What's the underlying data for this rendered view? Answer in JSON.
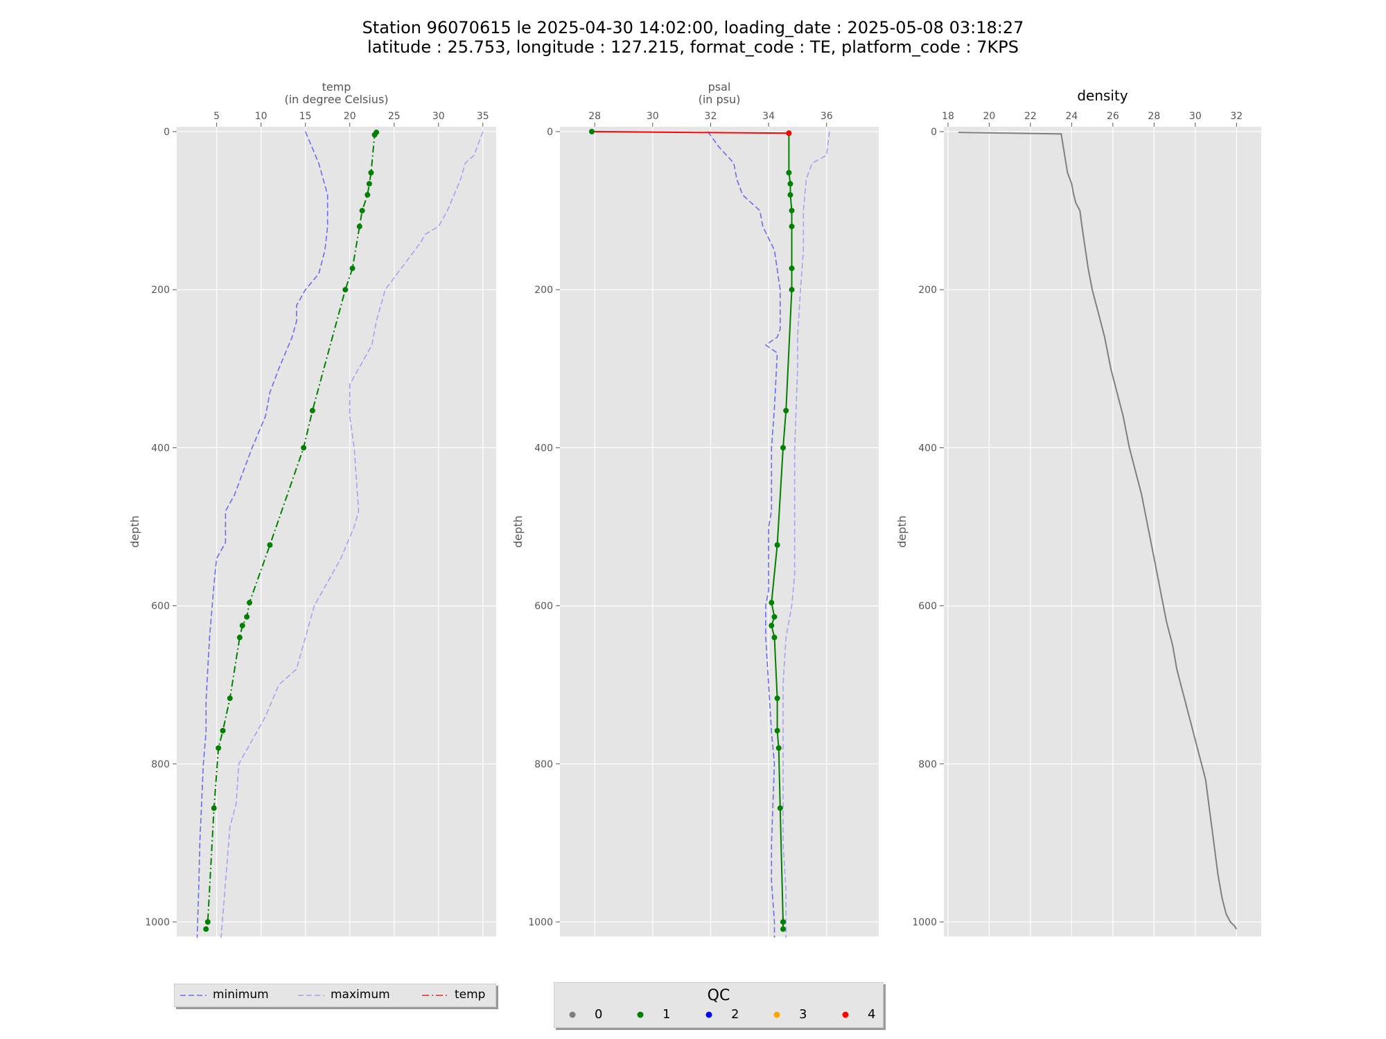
{
  "title": {
    "line1": "Station 96070615 le 2025-04-30 14:02:00, loading_date : 2025-05-08 03:18:27",
    "line2": "latitude : 25.753, longitude : 127.215, format_code : TE, platform_code : 7KPS"
  },
  "colors": {
    "minimum": "#6b6bf0",
    "maximum": "#a3a3f0",
    "temp_legend": "#e22c2c",
    "qc": {
      "0": "#7f7f7f",
      "1": "#007f00",
      "2": "#0000ff",
      "3": "#ffa500",
      "4": "#ff0000"
    },
    "density": "#7f7f7f"
  },
  "legend_left": {
    "items": [
      {
        "label": "minimum",
        "style": "dashed",
        "color": "#6b6bf0"
      },
      {
        "label": "maximum",
        "style": "dashed",
        "color": "#a3a3f0"
      },
      {
        "label": "temp",
        "style": "dashdot",
        "color": "#e22c2c"
      }
    ]
  },
  "legend_qc": {
    "title": "QC",
    "items": [
      {
        "label": "0",
        "color": "#7f7f7f"
      },
      {
        "label": "1",
        "color": "#007f00"
      },
      {
        "label": "2",
        "color": "#0000ff"
      },
      {
        "label": "3",
        "color": "#ffa500"
      },
      {
        "label": "4",
        "color": "#ff0000"
      }
    ]
  },
  "chart_data": [
    {
      "type": "line",
      "id": "temp",
      "title": "temp\n(in degree Celsius)",
      "ylabel": "depth",
      "xlim": [
        0.5,
        36.5
      ],
      "ylim": [
        1020,
        0
      ],
      "xticks": [
        5,
        10,
        15,
        20,
        25,
        30,
        35
      ],
      "yticks": [
        0,
        200,
        400,
        600,
        800,
        1000
      ],
      "grid": true,
      "series": [
        {
          "name": "minimum",
          "style": "dashed",
          "x": [
            15,
            16.5,
            17.5,
            17.5,
            17.2,
            16.5,
            15,
            14,
            14,
            13.5,
            12,
            11,
            10.5,
            9,
            8,
            7,
            6,
            6,
            6,
            5,
            4.8,
            4.5,
            4.2,
            4,
            3.8,
            3.8,
            3.5,
            3.3,
            3.1,
            3,
            2.8
          ],
          "y": [
            0,
            40,
            80,
            120,
            150,
            180,
            200,
            220,
            240,
            260,
            300,
            330,
            360,
            400,
            430,
            460,
            480,
            500,
            520,
            540,
            560,
            600,
            640,
            680,
            720,
            760,
            800,
            850,
            900,
            950,
            1020
          ]
        },
        {
          "name": "maximum",
          "style": "dashed",
          "x": [
            35,
            34,
            33,
            32.5,
            31,
            30,
            28.5,
            28,
            26,
            24,
            23,
            22.5,
            21,
            20,
            20,
            20.5,
            21,
            20.5,
            19,
            18,
            16,
            15,
            14,
            12,
            10.5,
            9.5,
            8,
            7.5,
            7.2,
            6.5,
            6,
            5.5
          ],
          "y": [
            0,
            30,
            40,
            60,
            100,
            120,
            130,
            140,
            170,
            200,
            240,
            270,
            300,
            320,
            360,
            400,
            480,
            500,
            540,
            560,
            600,
            640,
            680,
            700,
            740,
            760,
            790,
            800,
            850,
            880,
            950,
            1020
          ]
        },
        {
          "name": "temp",
          "style": "dashdot",
          "qc": 1,
          "x": [
            23,
            22.8,
            22.4,
            22.2,
            22,
            21.4,
            21.1,
            20.3,
            19.5,
            15.8,
            14.8,
            11,
            8.7,
            8.4,
            7.9,
            7.6,
            6.5,
            5.7,
            5.2,
            4.7,
            4,
            3.8
          ],
          "y": [
            1,
            4,
            52,
            66,
            80,
            100,
            120,
            173,
            200,
            353,
            400,
            523,
            596,
            614,
            625,
            640,
            717,
            758,
            780,
            856,
            1000,
            1009
          ]
        }
      ]
    },
    {
      "type": "line",
      "id": "psal",
      "title": "psal\n(in psu)",
      "ylabel": "depth",
      "xlim": [
        26.8,
        37.8
      ],
      "ylim": [
        1020,
        0
      ],
      "xticks": [
        28,
        30,
        32,
        34,
        36
      ],
      "yticks": [
        0,
        200,
        400,
        600,
        800,
        1000
      ],
      "grid": true,
      "series": [
        {
          "name": "minimum",
          "style": "dashed",
          "x": [
            31.9,
            32.3,
            32.8,
            32.9,
            33.1,
            33.7,
            33.8,
            34.2,
            34.4,
            34.4,
            34.3,
            33.9,
            34.3,
            34.2,
            34.1,
            34.1,
            34,
            34,
            33.9,
            33.9,
            34,
            34.1,
            34.2,
            34.1,
            34.1,
            34.2,
            34.2
          ],
          "y": [
            0,
            20,
            40,
            60,
            80,
            100,
            120,
            150,
            200,
            250,
            260,
            270,
            280,
            350,
            400,
            480,
            500,
            580,
            600,
            640,
            700,
            760,
            800,
            900,
            950,
            1000,
            1020
          ]
        },
        {
          "name": "maximum",
          "style": "dashed",
          "x": [
            36.1,
            36,
            35.5,
            35.3,
            35.2,
            35.2,
            35.1,
            35,
            35,
            34.9,
            34.9,
            34.9,
            34.8,
            34.6,
            34.5,
            34.5,
            34.5,
            34.6,
            34.6
          ],
          "y": [
            0,
            30,
            40,
            60,
            100,
            150,
            200,
            260,
            300,
            400,
            480,
            560,
            600,
            640,
            700,
            800,
            900,
            960,
            1020
          ]
        },
        {
          "name": "psal",
          "style": "solid",
          "qc": 1,
          "x": [
            34.7,
            34.7,
            34.75,
            34.75,
            34.8,
            34.8,
            34.8,
            34.8,
            34.6,
            34.5,
            34.3,
            34.1,
            34.2,
            34.1,
            34.2,
            34.3,
            34.3,
            34.35,
            34.4,
            34.5,
            34.5
          ],
          "y": [
            2,
            52,
            66,
            80,
            100,
            120,
            173,
            200,
            353,
            400,
            523,
            596,
            614,
            625,
            640,
            717,
            758,
            780,
            856,
            1000,
            1009
          ]
        },
        {
          "name": "psal_bad",
          "style": "solid",
          "qc": 4,
          "x": [
            27.9,
            34.7
          ],
          "y": [
            0,
            2
          ]
        }
      ],
      "points_qc1": [
        {
          "x": 27.9,
          "y": 0
        }
      ],
      "points_qc4": [
        {
          "x": 34.7,
          "y": 2
        }
      ]
    },
    {
      "type": "line",
      "id": "density",
      "title": "density",
      "ylabel": "depth",
      "xlim": [
        17.8,
        33.2
      ],
      "ylim": [
        1020,
        0
      ],
      "xticks": [
        18,
        20,
        22,
        24,
        26,
        28,
        30,
        32
      ],
      "yticks": [
        0,
        200,
        400,
        600,
        800,
        1000
      ],
      "grid": true,
      "series": [
        {
          "name": "density",
          "style": "solid",
          "x": [
            18.5,
            23.5,
            23.5,
            23.8,
            24,
            24.1,
            24.2,
            24.4,
            24.5,
            24.8,
            25,
            25.3,
            25.6,
            25.9,
            26.2,
            26.5,
            26.8,
            27.1,
            27.4,
            27.7,
            28,
            28.3,
            28.6,
            28.9,
            29.1,
            29.3,
            29.5,
            29.7,
            29.9,
            30.1,
            30.3,
            30.5,
            30.6,
            30.7,
            30.8,
            30.9,
            31.1,
            31.3,
            31.5,
            31.7,
            31.9,
            32
          ],
          "y": [
            1,
            3,
            4,
            52,
            66,
            80,
            90,
            100,
            120,
            173,
            200,
            230,
            260,
            300,
            330,
            360,
            400,
            430,
            460,
            500,
            540,
            580,
            620,
            650,
            680,
            700,
            720,
            740,
            760,
            780,
            800,
            820,
            840,
            860,
            880,
            900,
            940,
            970,
            990,
            1000,
            1005,
            1009
          ]
        }
      ]
    }
  ]
}
